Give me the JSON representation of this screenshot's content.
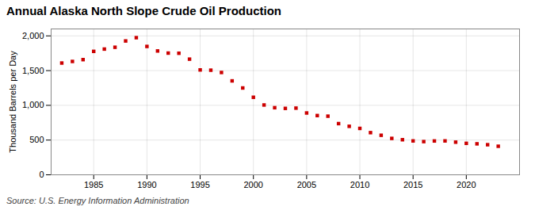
{
  "chart_data": {
    "type": "scatter",
    "title": "Annual Alaska North Slope Crude Oil Production",
    "ylabel": "Thousand Barrels per Day",
    "source": "Source: U.S. Energy Information Administration",
    "x": [
      1982,
      1983,
      1984,
      1985,
      1986,
      1987,
      1988,
      1989,
      1990,
      1991,
      1992,
      1993,
      1994,
      1995,
      1996,
      1997,
      1998,
      1999,
      2000,
      2001,
      2002,
      2003,
      2004,
      2005,
      2006,
      2007,
      2008,
      2009,
      2010,
      2011,
      2012,
      2013,
      2014,
      2015,
      2016,
      2017,
      2018,
      2019,
      2020,
      2021,
      2022,
      2023
    ],
    "values": [
      1609,
      1632,
      1658,
      1777,
      1810,
      1836,
      1927,
      1974,
      1848,
      1783,
      1752,
      1750,
      1665,
      1510,
      1506,
      1473,
      1352,
      1250,
      1116,
      1005,
      966,
      956,
      960,
      890,
      853,
      844,
      737,
      698,
      668,
      607,
      569,
      524,
      505,
      488,
      478,
      487,
      488,
      470,
      453,
      446,
      433,
      411
    ],
    "color": "#cc0000",
    "marker": "square",
    "xlim": [
      1981,
      2025
    ],
    "xticks": [
      1985,
      1990,
      1995,
      2000,
      2005,
      2010,
      2015,
      2020
    ],
    "ylim": [
      0,
      2100
    ],
    "yticks": [
      0,
      500,
      {
        "value": 1000,
        "label": "1,000"
      },
      {
        "value": 1500,
        "label": "1,500"
      },
      {
        "value": 2000,
        "label": "2,000"
      }
    ],
    "grid": true
  }
}
